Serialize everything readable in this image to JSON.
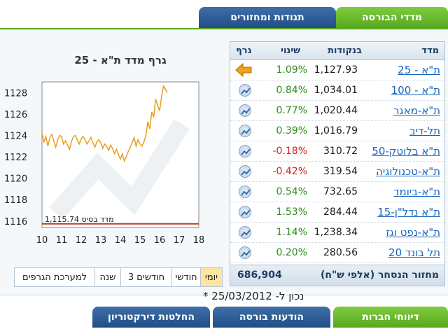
{
  "top_tabs": {
    "active": "מדדי הבורסה",
    "other": "תנודות ומחזורים"
  },
  "table": {
    "headers": {
      "name": "מדד",
      "points": "בנקודות",
      "change": "שינוי",
      "graph": "גרף"
    },
    "rows": [
      {
        "name": "ת\"א - 25",
        "points": "1,127.93",
        "change": "1.09%",
        "dir": "up",
        "icon": "arrow-left-icon"
      },
      {
        "name": "ת\"א - 100",
        "points": "1,034.01",
        "change": "0.84%",
        "dir": "up",
        "icon": "chart-icon"
      },
      {
        "name": "ת\"א-מאגר",
        "points": "1,020.44",
        "change": "0.77%",
        "dir": "up",
        "icon": "chart-icon"
      },
      {
        "name": "תל-דיב",
        "points": "1,016.79",
        "change": "0.39%",
        "dir": "up",
        "icon": "chart-icon"
      },
      {
        "name": "ת\"א בלוטק-50",
        "points": "310.72",
        "change": "-0.18%",
        "dir": "down",
        "icon": "chart-icon"
      },
      {
        "name": "ת\"א-טכנולוגיה",
        "points": "319.54",
        "change": "-0.42%",
        "dir": "down",
        "icon": "chart-icon"
      },
      {
        "name": "ת\"א-ביומד",
        "points": "732.65",
        "change": "0.54%",
        "dir": "up",
        "icon": "chart-icon"
      },
      {
        "name": "ת\"א נדל\"ן-15",
        "points": "284.44",
        "change": "1.53%",
        "dir": "up",
        "icon": "chart-icon"
      },
      {
        "name": "ת\"א-נפט וגז",
        "points": "1,238.34",
        "change": "1.14%",
        "dir": "up",
        "icon": "chart-icon"
      },
      {
        "name": "תל בונד 20",
        "points": "280.56",
        "change": "0.20%",
        "dir": "up",
        "icon": "chart-icon"
      }
    ],
    "turnover_label": "מחזור הנסחר (אלפי ש\"ח)",
    "turnover_value": "686,904"
  },
  "chart_data": {
    "type": "line",
    "title": "גרף מדד ת\"א - 25",
    "base_label": "מדד בסיס 1,115.74",
    "base_value": 1115.74,
    "ylim": [
      1115.4,
      1129
    ],
    "yticks": [
      1116,
      1118,
      1120,
      1122,
      1124,
      1126,
      1128
    ],
    "xlim": [
      10,
      18
    ],
    "xticks": [
      10,
      11,
      12,
      13,
      14,
      15,
      16,
      17,
      18
    ],
    "series": [
      {
        "x": [
          10.0,
          10.1,
          10.2,
          10.3,
          10.4,
          10.5,
          10.6,
          10.7,
          10.8,
          10.9,
          11.0,
          11.1,
          11.2,
          11.3,
          11.4,
          11.5,
          11.6,
          11.7,
          11.8,
          11.9,
          12.0,
          12.1,
          12.2,
          12.3,
          12.4,
          12.5,
          12.6,
          12.7,
          12.8,
          12.9,
          13.0,
          13.1,
          13.2,
          13.3,
          13.4,
          13.5,
          13.6,
          13.7,
          13.8,
          13.9,
          14.0,
          14.1,
          14.2,
          14.3,
          14.4,
          14.5,
          14.6,
          14.7,
          14.8,
          14.9,
          15.0,
          15.1,
          15.2,
          15.3,
          15.4,
          15.5,
          15.6,
          15.7,
          15.8,
          15.9,
          16.0,
          16.1,
          16.2,
          16.3,
          16.4
        ],
        "values": [
          1124.2,
          1123.4,
          1123.9,
          1123.0,
          1123.8,
          1124.1,
          1123.5,
          1122.9,
          1123.6,
          1124.0,
          1123.9,
          1123.2,
          1123.5,
          1123.1,
          1122.7,
          1123.4,
          1123.9,
          1124.0,
          1123.6,
          1123.2,
          1123.7,
          1123.9,
          1123.6,
          1123.2,
          1123.5,
          1123.8,
          1123.3,
          1122.9,
          1123.4,
          1123.6,
          1123.3,
          1122.8,
          1123.2,
          1123.0,
          1122.6,
          1123.1,
          1122.8,
          1122.3,
          1122.7,
          1122.2,
          1121.8,
          1122.3,
          1121.6,
          1122.0,
          1122.5,
          1122.9,
          1123.3,
          1123.8,
          1123.0,
          1123.6,
          1123.2,
          1123.0,
          1123.4,
          1124.0,
          1125.3,
          1124.6,
          1126.2,
          1125.7,
          1127.4,
          1126.8,
          1126.3,
          1127.6,
          1128.6,
          1128.3,
          1128.0
        ]
      }
    ]
  },
  "periods": [
    "יומי",
    "חודשי",
    "3 חודשים",
    "שנה",
    "למערכת הגרפים"
  ],
  "active_period": "יומי",
  "note": "* נכון ל- 25/03/2012",
  "bottom_tabs": [
    "דיווחי חברות",
    "הודעות בורסה",
    "החלטות דירקטוריון"
  ],
  "colors": {
    "up": "#2e8b1e",
    "down": "#d02020",
    "line": "#e8a020",
    "accent_green": "#58a81f",
    "accent_blue": "#1f4f86"
  }
}
